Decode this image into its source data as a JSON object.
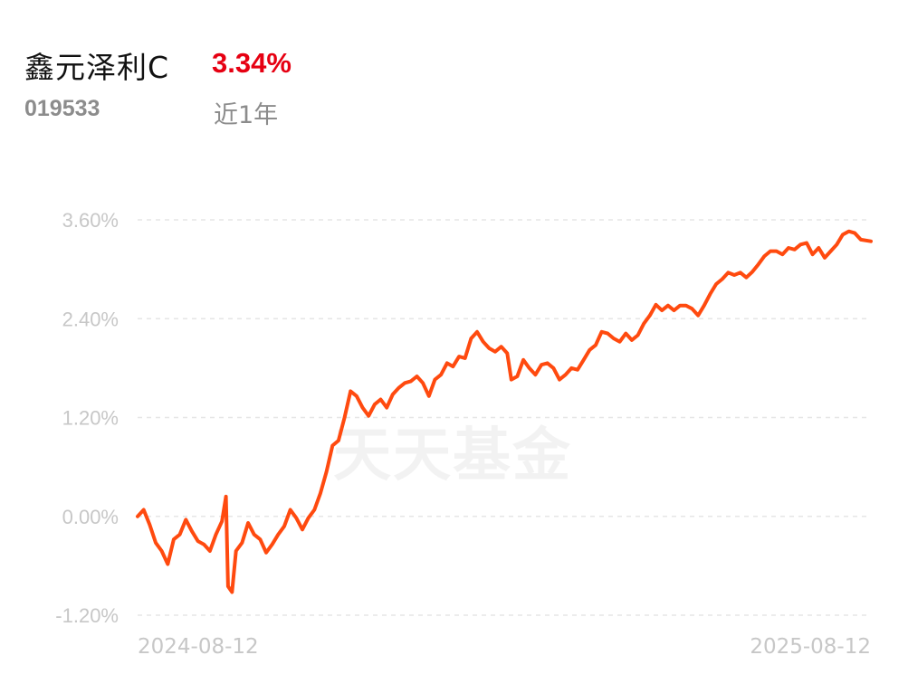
{
  "header": {
    "fund_name": "鑫元泽利C",
    "return_value": "3.34%",
    "fund_code": "019533",
    "period": "近1年"
  },
  "watermark": "天天基金",
  "colors": {
    "line": "#ff4a0f",
    "return_text": "#e60012",
    "grid": "#e6e6e6",
    "tick_text": "#c7c7c7"
  },
  "chart_data": {
    "type": "line",
    "title": "",
    "xlabel": "",
    "ylabel": "",
    "ylim": [
      -1.2,
      3.6
    ],
    "ytick_labels": [
      "3.60%",
      "2.40%",
      "1.20%",
      "0.00%",
      "-1.20%"
    ],
    "ytick_values": [
      3.6,
      2.4,
      1.2,
      0.0,
      -1.2
    ],
    "xtick_labels": [
      "2024-08-12",
      "2025-08-12"
    ],
    "grid": true,
    "x_range": [
      "2024-08-12",
      "2025-08-12"
    ],
    "series": [
      {
        "name": "",
        "color": "#ff4a0f",
        "points": [
          [
            "2024-08-12",
            0.0
          ],
          [
            "2024-08-15",
            0.08
          ],
          [
            "2024-08-18",
            -0.1
          ],
          [
            "2024-08-21",
            -0.32
          ],
          [
            "2024-08-24",
            -0.42
          ],
          [
            "2024-08-27",
            -0.58
          ],
          [
            "2024-08-30",
            -0.28
          ],
          [
            "2024-09-02",
            -0.22
          ],
          [
            "2024-09-05",
            -0.04
          ],
          [
            "2024-09-08",
            -0.18
          ],
          [
            "2024-09-11",
            -0.3
          ],
          [
            "2024-09-14",
            -0.34
          ],
          [
            "2024-09-17",
            -0.42
          ],
          [
            "2024-09-20",
            -0.22
          ],
          [
            "2024-09-23",
            -0.06
          ],
          [
            "2024-09-25",
            0.24
          ],
          [
            "2024-09-26",
            -0.85
          ],
          [
            "2024-09-28",
            -0.92
          ],
          [
            "2024-09-30",
            -0.42
          ],
          [
            "2024-10-03",
            -0.32
          ],
          [
            "2024-10-06",
            -0.08
          ],
          [
            "2024-10-09",
            -0.22
          ],
          [
            "2024-10-12",
            -0.28
          ],
          [
            "2024-10-15",
            -0.44
          ],
          [
            "2024-10-18",
            -0.34
          ],
          [
            "2024-10-21",
            -0.22
          ],
          [
            "2024-10-24",
            -0.12
          ],
          [
            "2024-10-27",
            0.08
          ],
          [
            "2024-10-30",
            -0.02
          ],
          [
            "2024-11-02",
            -0.16
          ],
          [
            "2024-11-05",
            -0.02
          ],
          [
            "2024-11-08",
            0.08
          ],
          [
            "2024-11-11",
            0.28
          ],
          [
            "2024-11-14",
            0.54
          ],
          [
            "2024-11-17",
            0.86
          ],
          [
            "2024-11-20",
            0.92
          ],
          [
            "2024-11-23",
            1.2
          ],
          [
            "2024-11-26",
            1.52
          ],
          [
            "2024-11-29",
            1.46
          ],
          [
            "2024-12-02",
            1.32
          ],
          [
            "2024-12-05",
            1.22
          ],
          [
            "2024-12-08",
            1.36
          ],
          [
            "2024-12-11",
            1.42
          ],
          [
            "2024-12-14",
            1.32
          ],
          [
            "2024-12-17",
            1.48
          ],
          [
            "2024-12-20",
            1.56
          ],
          [
            "2024-12-23",
            1.62
          ],
          [
            "2024-12-26",
            1.64
          ],
          [
            "2024-12-29",
            1.7
          ],
          [
            "2025-01-01",
            1.62
          ],
          [
            "2025-01-04",
            1.46
          ],
          [
            "2025-01-07",
            1.66
          ],
          [
            "2025-01-10",
            1.72
          ],
          [
            "2025-01-13",
            1.86
          ],
          [
            "2025-01-16",
            1.82
          ],
          [
            "2025-01-19",
            1.94
          ],
          [
            "2025-01-22",
            1.92
          ],
          [
            "2025-01-25",
            2.16
          ],
          [
            "2025-01-28",
            2.24
          ],
          [
            "2025-01-31",
            2.12
          ],
          [
            "2025-02-03",
            2.04
          ],
          [
            "2025-02-06",
            2.0
          ],
          [
            "2025-02-09",
            2.06
          ],
          [
            "2025-02-12",
            1.98
          ],
          [
            "2025-02-14",
            1.66
          ],
          [
            "2025-02-17",
            1.7
          ],
          [
            "2025-02-20",
            1.9
          ],
          [
            "2025-02-23",
            1.8
          ],
          [
            "2025-02-26",
            1.72
          ],
          [
            "2025-03-01",
            1.84
          ],
          [
            "2025-03-04",
            1.86
          ],
          [
            "2025-03-07",
            1.8
          ],
          [
            "2025-03-10",
            1.66
          ],
          [
            "2025-03-13",
            1.72
          ],
          [
            "2025-03-16",
            1.8
          ],
          [
            "2025-03-19",
            1.78
          ],
          [
            "2025-03-22",
            1.9
          ],
          [
            "2025-03-25",
            2.02
          ],
          [
            "2025-03-28",
            2.08
          ],
          [
            "2025-03-31",
            2.24
          ],
          [
            "2025-04-03",
            2.22
          ],
          [
            "2025-04-06",
            2.16
          ],
          [
            "2025-04-09",
            2.12
          ],
          [
            "2025-04-12",
            2.22
          ],
          [
            "2025-04-15",
            2.14
          ],
          [
            "2025-04-18",
            2.2
          ],
          [
            "2025-04-21",
            2.34
          ],
          [
            "2025-04-24",
            2.44
          ],
          [
            "2025-04-27",
            2.57
          ],
          [
            "2025-04-30",
            2.5
          ],
          [
            "2025-05-03",
            2.56
          ],
          [
            "2025-05-06",
            2.5
          ],
          [
            "2025-05-09",
            2.56
          ],
          [
            "2025-05-12",
            2.56
          ],
          [
            "2025-05-15",
            2.52
          ],
          [
            "2025-05-18",
            2.44
          ],
          [
            "2025-05-21",
            2.56
          ],
          [
            "2025-05-24",
            2.7
          ],
          [
            "2025-05-27",
            2.82
          ],
          [
            "2025-05-30",
            2.88
          ],
          [
            "2025-06-02",
            2.96
          ],
          [
            "2025-06-05",
            2.93
          ],
          [
            "2025-06-08",
            2.96
          ],
          [
            "2025-06-11",
            2.9
          ],
          [
            "2025-06-14",
            2.97
          ],
          [
            "2025-06-17",
            3.06
          ],
          [
            "2025-06-20",
            3.16
          ],
          [
            "2025-06-23",
            3.22
          ],
          [
            "2025-06-26",
            3.22
          ],
          [
            "2025-06-29",
            3.18
          ],
          [
            "2025-07-02",
            3.26
          ],
          [
            "2025-07-05",
            3.24
          ],
          [
            "2025-07-08",
            3.3
          ],
          [
            "2025-07-11",
            3.32
          ],
          [
            "2025-07-14",
            3.18
          ],
          [
            "2025-07-17",
            3.26
          ],
          [
            "2025-07-20",
            3.14
          ],
          [
            "2025-07-23",
            3.22
          ],
          [
            "2025-07-26",
            3.3
          ],
          [
            "2025-07-29",
            3.42
          ],
          [
            "2025-08-01",
            3.46
          ],
          [
            "2025-08-04",
            3.44
          ],
          [
            "2025-08-07",
            3.36
          ],
          [
            "2025-08-12",
            3.34
          ]
        ]
      }
    ]
  }
}
